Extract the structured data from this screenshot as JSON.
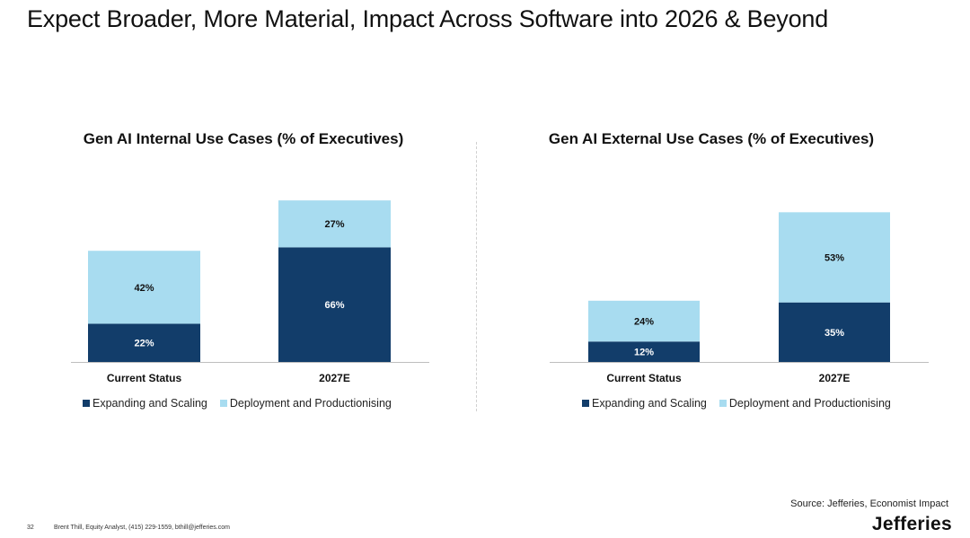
{
  "slide": {
    "title": "Expect Broader, More Material, Impact Across Software into 2026 & Beyond",
    "source": "Source: Jefferies, Economist Impact",
    "page_number": "32",
    "author_line": "Brent Thill, Equity Analyst, (415) 229-1559, bthill@jefferies.com",
    "logo_text": "Jefferies"
  },
  "colors": {
    "expanding": "#123D6A",
    "deployment": "#A8DCF0",
    "label_on_dark": "#ffffff",
    "label_on_light": "#111111"
  },
  "chart_data": [
    {
      "type": "bar",
      "stacked": true,
      "title": "Gen AI Internal Use Cases (% of Executives)",
      "categories": [
        "Current Status",
        "2027E"
      ],
      "series": [
        {
          "name": "Expanding and Scaling",
          "values": [
            22,
            66
          ],
          "labels": [
            "22%",
            "66%"
          ]
        },
        {
          "name": "Deployment and Productionising",
          "values": [
            42,
            27
          ],
          "labels": [
            "42%",
            "27%"
          ]
        }
      ],
      "ylim": [
        0,
        100
      ],
      "legend": "bottom",
      "grid": false
    },
    {
      "type": "bar",
      "stacked": true,
      "title": "Gen AI External Use Cases (% of Executives)",
      "categories": [
        "Current Status",
        "2027E"
      ],
      "series": [
        {
          "name": "Expanding and Scaling",
          "values": [
            12,
            35
          ],
          "labels": [
            "12%",
            "35%"
          ]
        },
        {
          "name": "Deployment and Productionising",
          "values": [
            24,
            53
          ],
          "labels": [
            "24%",
            "53%"
          ]
        }
      ],
      "ylim": [
        0,
        100
      ],
      "legend": "bottom",
      "grid": false
    }
  ]
}
